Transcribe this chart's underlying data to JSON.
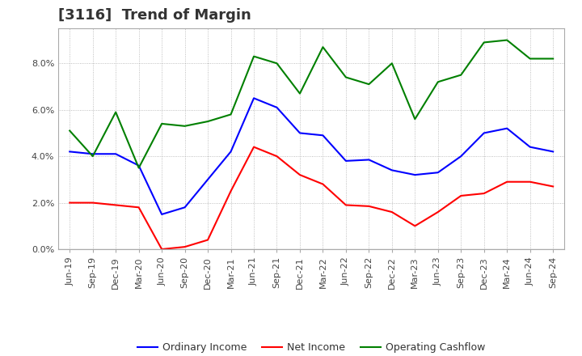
{
  "title": "[3116]  Trend of Margin",
  "x_labels": [
    "Jun-19",
    "Sep-19",
    "Dec-19",
    "Mar-20",
    "Jun-20",
    "Sep-20",
    "Dec-20",
    "Mar-21",
    "Jun-21",
    "Sep-21",
    "Dec-21",
    "Mar-22",
    "Jun-22",
    "Sep-22",
    "Dec-22",
    "Mar-23",
    "Jun-23",
    "Sep-23",
    "Dec-23",
    "Mar-24",
    "Jun-24",
    "Sep-24"
  ],
  "ordinary_income": [
    4.2,
    4.1,
    4.1,
    3.6,
    1.5,
    1.8,
    3.0,
    4.2,
    6.5,
    6.1,
    5.0,
    4.9,
    3.8,
    3.85,
    3.4,
    3.2,
    3.3,
    4.0,
    5.0,
    5.2,
    4.4,
    4.2
  ],
  "net_income": [
    2.0,
    2.0,
    1.9,
    1.8,
    0.0,
    0.1,
    0.4,
    2.5,
    4.4,
    4.0,
    3.2,
    2.8,
    1.9,
    1.85,
    1.6,
    1.0,
    1.6,
    2.3,
    2.4,
    2.9,
    2.9,
    2.7
  ],
  "operating_cashflow": [
    5.1,
    4.0,
    5.9,
    3.5,
    5.4,
    5.3,
    5.5,
    5.8,
    8.3,
    8.0,
    6.7,
    8.7,
    7.4,
    7.1,
    8.0,
    5.6,
    7.2,
    7.5,
    8.9,
    9.0,
    8.2,
    8.2
  ],
  "ylim": [
    0.0,
    9.5
  ],
  "yticks": [
    0.0,
    2.0,
    4.0,
    6.0,
    8.0
  ],
  "line_color_oi": "#0000FF",
  "line_color_ni": "#FF0000",
  "line_color_ocf": "#008000",
  "background_color": "#FFFFFF",
  "grid_color": "#999999",
  "title_color": "#333333",
  "legend_oi": "Ordinary Income",
  "legend_ni": "Net Income",
  "legend_ocf": "Operating Cashflow",
  "title_fontsize": 13,
  "axis_fontsize": 8,
  "legend_fontsize": 9
}
